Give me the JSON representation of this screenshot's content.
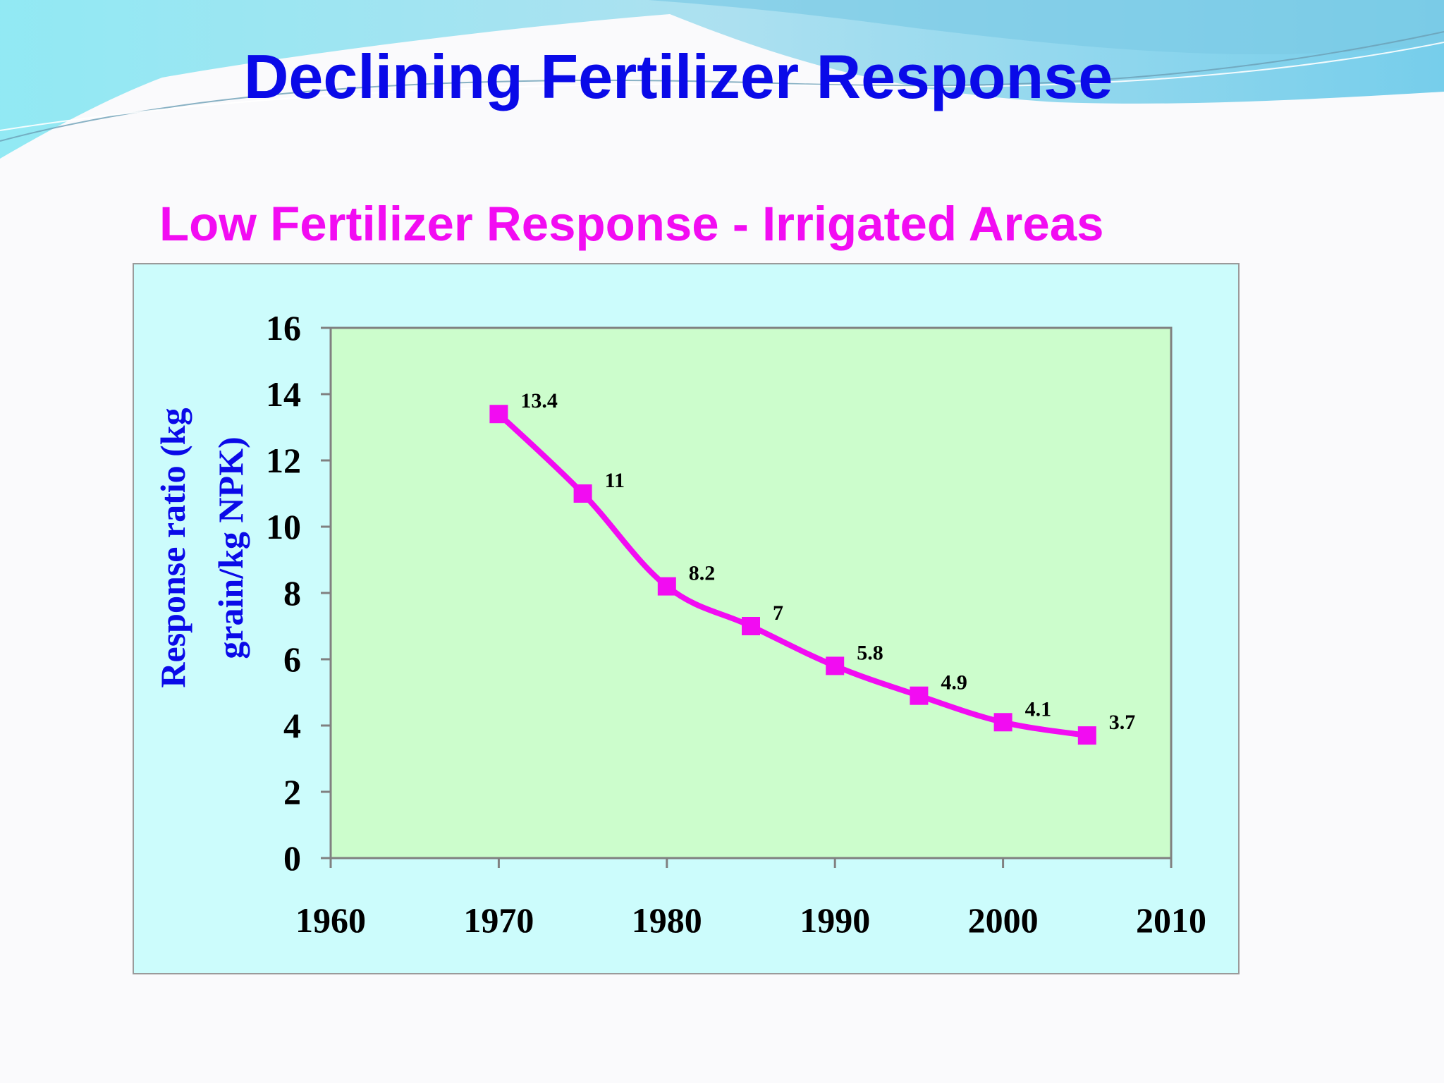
{
  "slide": {
    "title": "Declining Fertilizer Response",
    "colors": {
      "title": "#0a0ae8",
      "chart_title": "#f20cf2",
      "chart_bg": "#ccfcfc",
      "plot_bg": "#ccfdcc",
      "series": "#f20cf2"
    }
  },
  "chart_data": {
    "type": "line",
    "title": "Low Fertilizer Response - Irrigated Areas",
    "ylabel_lines": [
      "Response ratio (kg",
      "grain/kg NPK)"
    ],
    "xlabel": "",
    "x_ticks": [
      1960,
      1970,
      1980,
      1990,
      2000,
      2010
    ],
    "y_ticks": [
      0,
      2,
      4,
      6,
      8,
      10,
      12,
      14,
      16
    ],
    "xlim": [
      1960,
      2010
    ],
    "ylim": [
      0,
      16
    ],
    "grid": false,
    "series": [
      {
        "x": [
          1970,
          1975,
          1980,
          1985,
          1990,
          1995,
          2000,
          2005
        ],
        "y": [
          13.4,
          11,
          8.2,
          7,
          5.8,
          4.9,
          4.1,
          3.7
        ],
        "labels": [
          "13.4",
          "11",
          "8.2",
          "7",
          "5.8",
          "4.9",
          "4.1",
          "3.7"
        ],
        "color": "#f20cf2",
        "marker": "square"
      }
    ]
  }
}
